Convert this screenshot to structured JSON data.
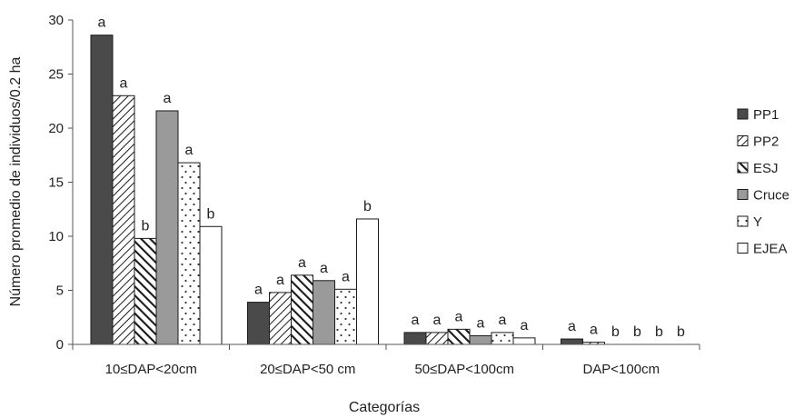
{
  "chart_data": {
    "type": "bar",
    "xlabel": "Categorías",
    "ylabel": "Número promedio de individuos/0.2 ha",
    "ylim": [
      0,
      30
    ],
    "yticks": [
      "0",
      "5",
      "10",
      "15",
      "20",
      "25",
      "30"
    ],
    "categories": [
      "10≤DAP<20cm",
      "20≤DAP<50 cm",
      "50≤DAP<100cm",
      "DAP<100cm"
    ],
    "legend_position": "right",
    "series": [
      {
        "name": "PP1",
        "pattern": "dark",
        "values": [
          28.6,
          3.9,
          1.1,
          0.5
        ],
        "letters": [
          "a",
          "a",
          "a",
          "a"
        ]
      },
      {
        "name": "PP2",
        "pattern": "diagonal-thin",
        "values": [
          23.0,
          4.8,
          1.1,
          0.2
        ],
        "letters": [
          "a",
          "a",
          "a",
          "a"
        ]
      },
      {
        "name": "ESJ",
        "pattern": "diagonal-thick",
        "values": [
          9.8,
          6.4,
          1.4,
          0.0
        ],
        "letters": [
          "b",
          "a",
          "a",
          "b"
        ]
      },
      {
        "name": "Cruce",
        "pattern": "gray",
        "values": [
          21.6,
          5.9,
          0.8,
          0.0
        ],
        "letters": [
          "a",
          "a",
          "a",
          "b"
        ]
      },
      {
        "name": "Y",
        "pattern": "dots",
        "values": [
          16.8,
          5.1,
          1.1,
          0.0
        ],
        "letters": [
          "a",
          "a",
          "a",
          "b"
        ]
      },
      {
        "name": "EJEA",
        "pattern": "white",
        "values": [
          10.9,
          11.6,
          0.6,
          0.0
        ],
        "letters": [
          "b",
          "b",
          "a",
          "b"
        ]
      }
    ],
    "colors": {
      "dark": "#4a4a4a",
      "gray": "#9a9a9a",
      "outline": "#1a1a1a",
      "axis": "#555555"
    }
  }
}
